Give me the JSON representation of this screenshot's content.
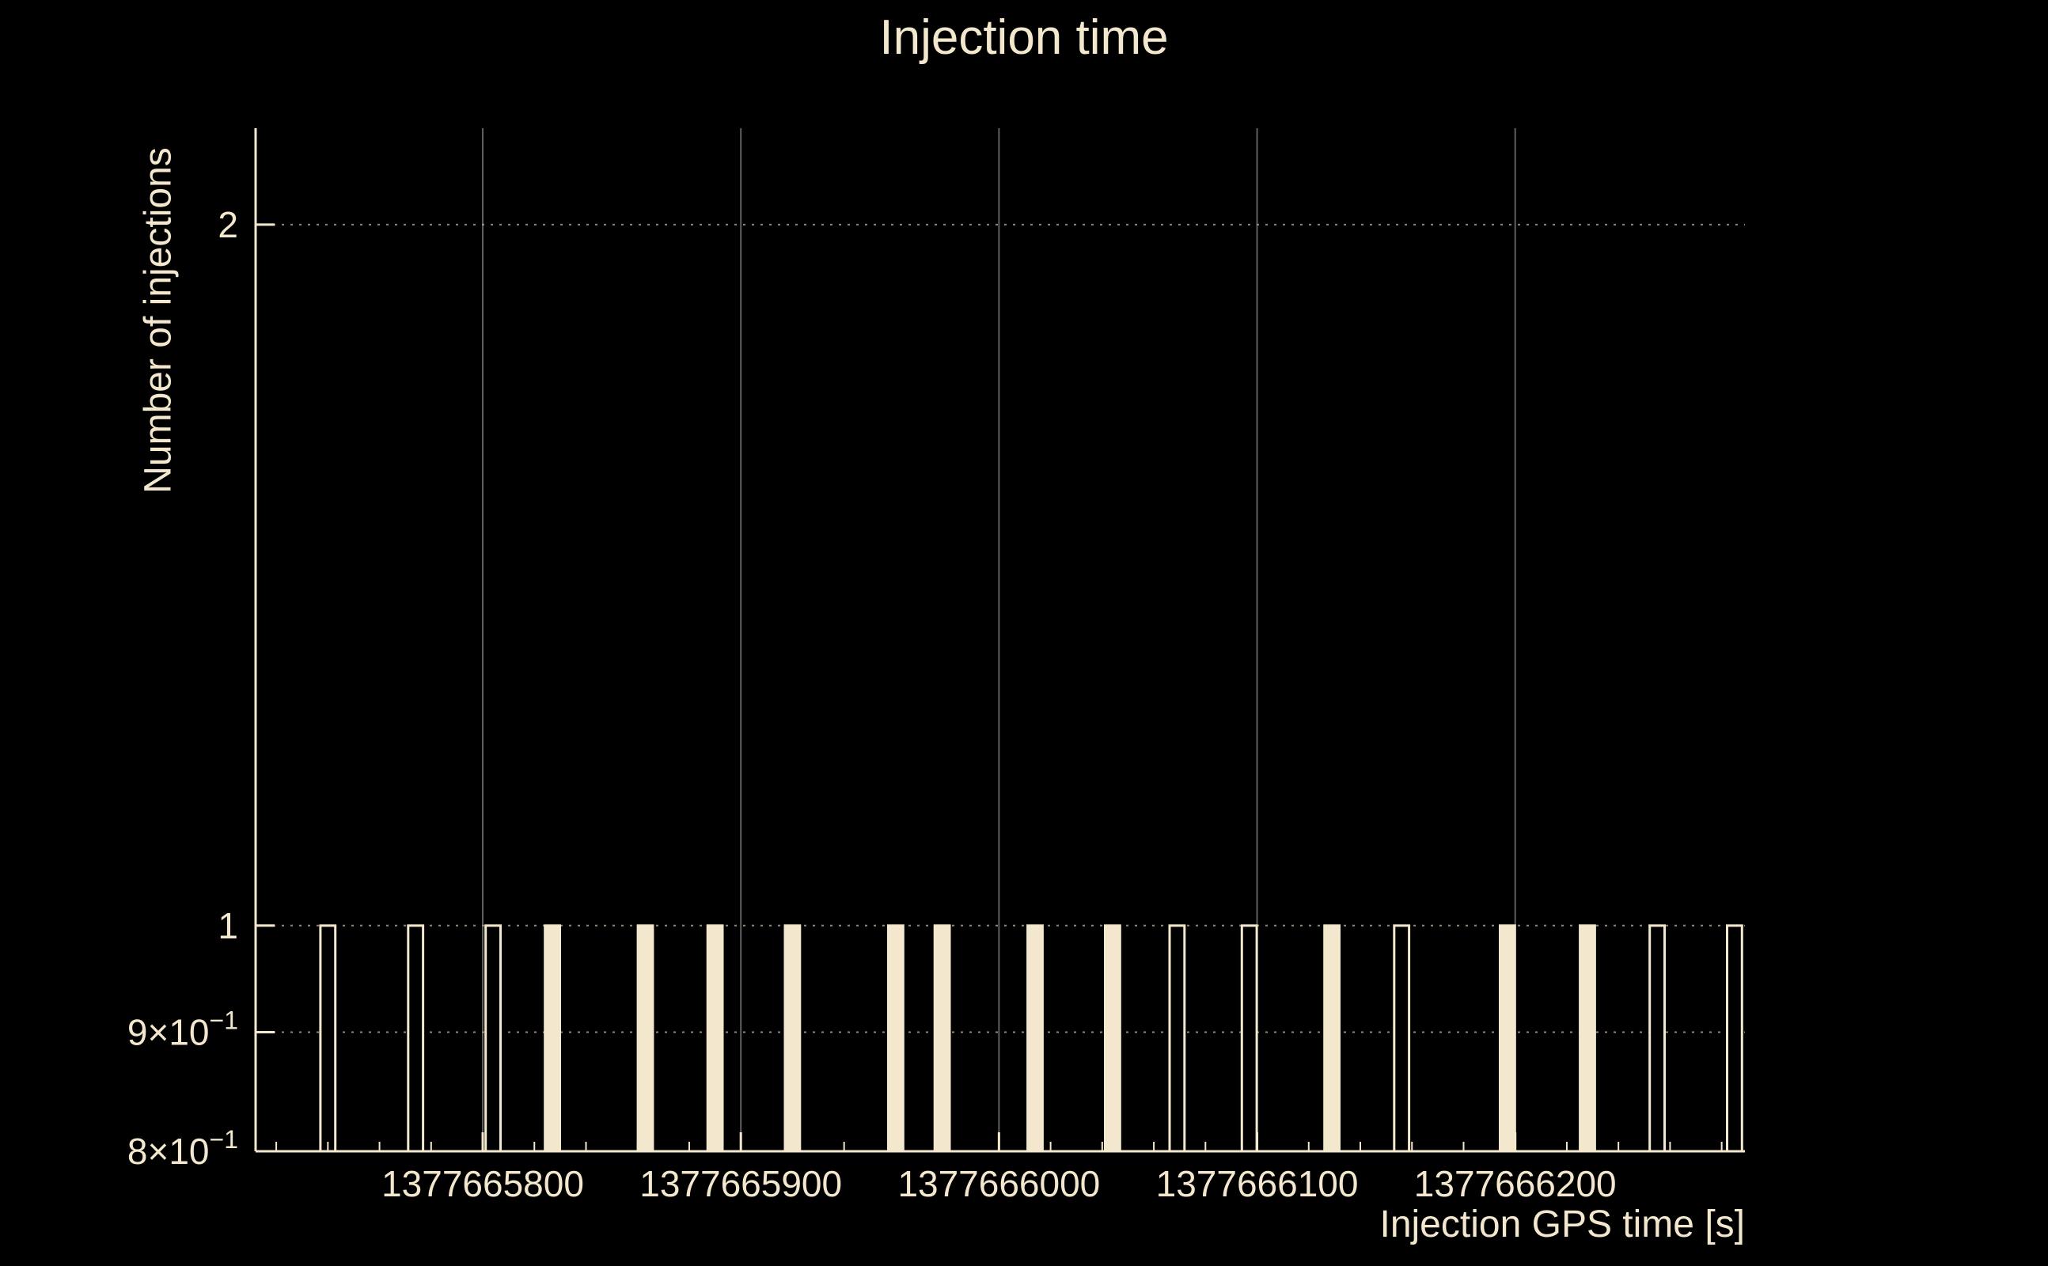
{
  "colors": {
    "background": "#000000",
    "foreground": "#f3e8cd",
    "grid_vertical": "#5f5f5f",
    "grid_horizontal": "#a89f8a"
  },
  "chart_data": {
    "type": "bar",
    "title": "Injection time",
    "xlabel": "Injection GPS time [s]",
    "ylabel": "Number of injections",
    "xscale": "linear",
    "yscale": "log",
    "xlim": [
      1377665712,
      1377666289
    ],
    "ylim": [
      0.8,
      2.2
    ],
    "xticks": [
      1377665800,
      1377665900,
      1377666000,
      1377666100,
      1377666200
    ],
    "xtick_labels": [
      "1377665800",
      "1377665900",
      "1377666000",
      "1377666100",
      "1377666200"
    ],
    "minor_xtick_step": 20,
    "yticks": [
      {
        "value": 0.8,
        "mantissa": "8×10",
        "exponent": "−1"
      },
      {
        "value": 0.9,
        "mantissa": "9×10",
        "exponent": "−1"
      },
      {
        "value": 1,
        "mantissa": "1",
        "exponent": ""
      },
      {
        "value": 2,
        "mantissa": "2",
        "exponent": ""
      }
    ],
    "grid": {
      "vertical_at_xticks": true,
      "horizontal_dotted_at": [
        2,
        1,
        0.9
      ]
    },
    "bin_width": 5.77,
    "bars": [
      {
        "time": 1377665740,
        "count": 1,
        "style": "outline"
      },
      {
        "time": 1377665774,
        "count": 1,
        "style": "outline"
      },
      {
        "time": 1377665804,
        "count": 1,
        "style": "outline"
      },
      {
        "time": 1377665827,
        "count": 1,
        "style": "filled"
      },
      {
        "time": 1377665863,
        "count": 1,
        "style": "filled"
      },
      {
        "time": 1377665890,
        "count": 1,
        "style": "filled"
      },
      {
        "time": 1377665920,
        "count": 1,
        "style": "filled"
      },
      {
        "time": 1377665960,
        "count": 1,
        "style": "filled"
      },
      {
        "time": 1377665978,
        "count": 1,
        "style": "filled"
      },
      {
        "time": 1377666014,
        "count": 1,
        "style": "filled"
      },
      {
        "time": 1377666044,
        "count": 1,
        "style": "filled"
      },
      {
        "time": 1377666069,
        "count": 1,
        "style": "outline"
      },
      {
        "time": 1377666097,
        "count": 1,
        "style": "outline"
      },
      {
        "time": 1377666129,
        "count": 1,
        "style": "filled"
      },
      {
        "time": 1377666156,
        "count": 1,
        "style": "outline"
      },
      {
        "time": 1377666197,
        "count": 1,
        "style": "filled"
      },
      {
        "time": 1377666228,
        "count": 1,
        "style": "filled"
      },
      {
        "time": 1377666255,
        "count": 1,
        "style": "outline"
      },
      {
        "time": 1377666285,
        "count": 1,
        "style": "outline"
      }
    ]
  }
}
